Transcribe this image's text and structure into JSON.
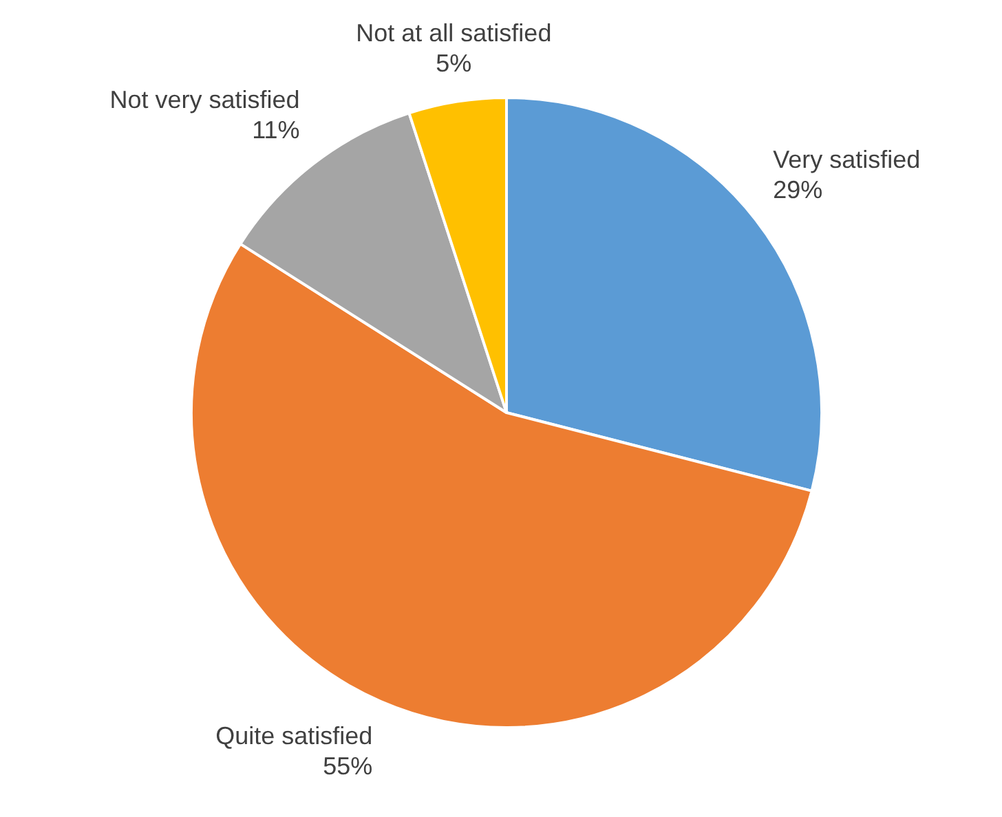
{
  "chart_data": {
    "type": "pie",
    "categories": [
      "Very satisfied",
      "Quite satisfied",
      "Not very satisfied",
      "Not at all satisfied"
    ],
    "values": [
      29,
      55,
      11,
      5
    ],
    "colors": [
      "#5b9bd5",
      "#ed7d31",
      "#a5a5a5",
      "#ffc000"
    ],
    "value_labels": [
      "29%",
      "55%",
      "11%",
      "5%"
    ],
    "legend": false
  }
}
